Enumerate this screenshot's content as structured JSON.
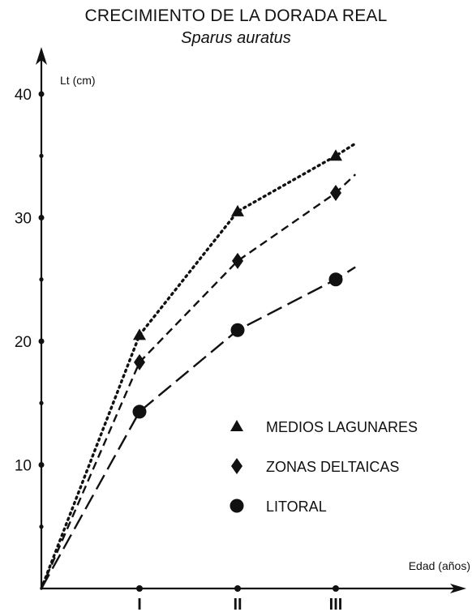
{
  "chart_data": {
    "type": "line",
    "title": "CRECIMIENTO DE LA DORADA REAL",
    "subtitle": "Sparus auratus",
    "xlabel": "Edad (años)",
    "ylabel": "Lt (cm)",
    "categories": [
      "0",
      "I",
      "II",
      "III"
    ],
    "x_tick_labels": [
      "I",
      "II",
      "III"
    ],
    "y_ticks": [
      10,
      20,
      30,
      40
    ],
    "ylim": [
      0,
      40
    ],
    "xlim": [
      0,
      3.25
    ],
    "grid": false,
    "legend_position": "bottom-right",
    "series": [
      {
        "name": "MEDIOS LAGUNARES",
        "marker": "triangle",
        "line_style": "dotted",
        "x": [
          0,
          1,
          2,
          3
        ],
        "values": [
          0,
          20.5,
          30.5,
          35
        ],
        "end_x": 3.2,
        "end_y": 36
      },
      {
        "name": "ZONAS DELTAICAS",
        "marker": "diamond",
        "line_style": "dashed",
        "x": [
          0,
          1,
          2,
          3
        ],
        "values": [
          0,
          18.3,
          26.5,
          32
        ],
        "end_x": 3.2,
        "end_y": 33.5
      },
      {
        "name": "LITORAL",
        "marker": "circle",
        "line_style": "long-dashed",
        "x": [
          0,
          1,
          2,
          3
        ],
        "values": [
          0,
          14.3,
          20.9,
          25
        ],
        "end_x": 3.2,
        "end_y": 26
      }
    ],
    "colors": {
      "ink": "#111111",
      "background": "#ffffff"
    }
  }
}
